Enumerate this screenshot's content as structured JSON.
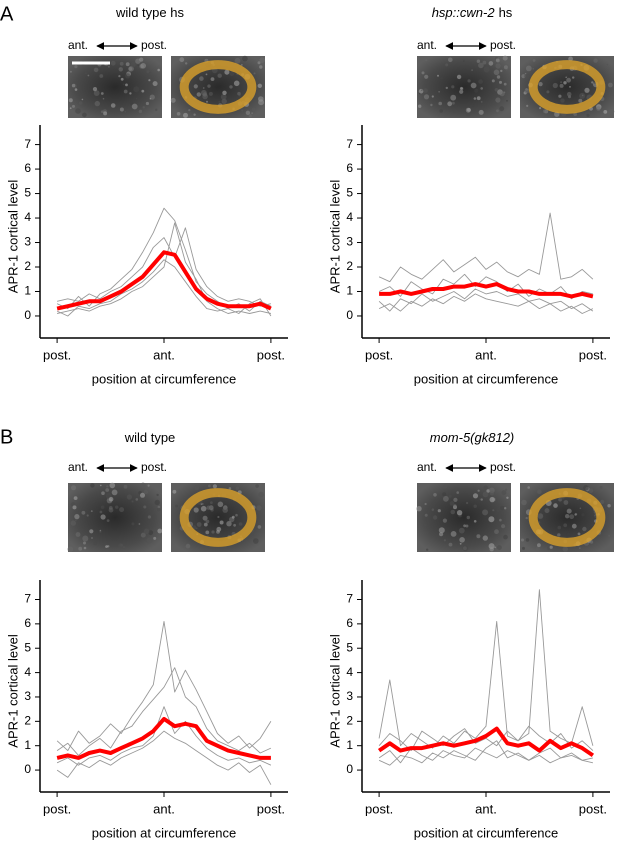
{
  "panel_labels": [
    "A",
    "B"
  ],
  "chart_data": [
    {
      "type": "line",
      "title": "wild type hs",
      "title_italic": false,
      "orientation_labels": [
        "ant.",
        "post."
      ],
      "xlabel": "position at circumference",
      "ylabel": "APR-1 cortical level",
      "x": [
        0,
        0.05,
        0.1,
        0.15,
        0.2,
        0.25,
        0.3,
        0.35,
        0.4,
        0.45,
        0.5,
        0.55,
        0.6,
        0.65,
        0.7,
        0.75,
        0.8,
        0.85,
        0.9,
        0.95,
        1
      ],
      "xlim": [
        -0.08,
        1.08
      ],
      "xticks": [
        {
          "value": 0,
          "label": "post."
        },
        {
          "value": 0.5,
          "label": "ant."
        },
        {
          "value": 1,
          "label": "post."
        }
      ],
      "ylim": [
        -0.9,
        7.8
      ],
      "yticks": [
        0,
        1,
        2,
        3,
        4,
        5,
        6,
        7
      ],
      "series": [
        {
          "color": "#999999",
          "values": [
            0.5,
            0.3,
            0.8,
            0.4,
            0.9,
            1.1,
            1.5,
            1.9,
            2.6,
            3.4,
            4.4,
            3.9,
            2.7,
            1.4,
            0.9,
            0.6,
            0.3,
            0.5,
            0.2,
            0.6,
            0.4
          ]
        },
        {
          "color": "#999999",
          "values": [
            0.1,
            0.2,
            0.3,
            0.2,
            0.4,
            0.5,
            0.7,
            1.0,
            1.2,
            1.6,
            2.0,
            3.8,
            2.2,
            1.5,
            0.6,
            0.3,
            0.1,
            0.2,
            0.1,
            0.2,
            0.1
          ]
        },
        {
          "color": "#999999",
          "values": [
            0.6,
            0.7,
            0.6,
            0.9,
            0.7,
            1.0,
            1.2,
            1.6,
            2.0,
            2.8,
            3.2,
            2.4,
            3.6,
            1.9,
            1.2,
            0.8,
            0.6,
            0.7,
            0.6,
            0.4,
            0.5
          ]
        },
        {
          "color": "#999999",
          "values": [
            0.2,
            0.0,
            0.4,
            0.3,
            0.5,
            0.6,
            0.9,
            1.1,
            1.4,
            1.8,
            2.3,
            2.0,
            1.4,
            0.8,
            0.3,
            0.2,
            0.3,
            0.1,
            0.5,
            0.7,
            0.0
          ]
        },
        {
          "color": "#ff0000",
          "values": [
            0.3,
            0.4,
            0.5,
            0.6,
            0.6,
            0.8,
            1.0,
            1.3,
            1.6,
            2.1,
            2.6,
            2.5,
            1.8,
            1.1,
            0.7,
            0.5,
            0.4,
            0.4,
            0.4,
            0.5,
            0.3
          ]
        }
      ]
    },
    {
      "type": "line",
      "title": "hsp::cwn-2",
      "title_suffix": "hs",
      "title_italic": true,
      "orientation_labels": [
        "ant.",
        "post."
      ],
      "xlabel": "position at circumference",
      "ylabel": "APR-1 cortical level",
      "x": [
        0,
        0.05,
        0.1,
        0.15,
        0.2,
        0.25,
        0.3,
        0.35,
        0.4,
        0.45,
        0.5,
        0.55,
        0.6,
        0.65,
        0.7,
        0.75,
        0.8,
        0.85,
        0.9,
        0.95,
        1
      ],
      "xlim": [
        -0.08,
        1.08
      ],
      "xticks": [
        {
          "value": 0,
          "label": "post."
        },
        {
          "value": 0.5,
          "label": "ant."
        },
        {
          "value": 1,
          "label": "post."
        }
      ],
      "ylim": [
        -0.9,
        7.8
      ],
      "yticks": [
        0,
        1,
        2,
        3,
        4,
        5,
        6,
        7
      ],
      "series": [
        {
          "color": "#999999",
          "values": [
            1.6,
            1.4,
            2.0,
            1.7,
            1.5,
            1.9,
            2.3,
            1.8,
            2.1,
            2.4,
            1.9,
            2.2,
            1.8,
            1.6,
            1.9,
            1.7,
            4.2,
            1.5,
            1.6,
            1.9,
            1.5
          ]
        },
        {
          "color": "#999999",
          "values": [
            0.3,
            0.5,
            0.2,
            0.6,
            0.4,
            0.7,
            0.5,
            0.8,
            0.6,
            0.9,
            0.7,
            0.6,
            0.5,
            0.4,
            0.6,
            0.3,
            0.5,
            0.2,
            0.4,
            0.1,
            0.3
          ]
        },
        {
          "color": "#999999",
          "values": [
            1.0,
            1.2,
            0.8,
            1.4,
            1.1,
            0.9,
            1.5,
            1.3,
            1.7,
            1.2,
            1.6,
            1.4,
            1.0,
            1.3,
            0.8,
            1.1,
            0.9,
            1.2,
            0.7,
            1.0,
            0.9
          ]
        },
        {
          "color": "#999999",
          "values": [
            0.6,
            0.2,
            0.7,
            0.5,
            0.9,
            0.6,
            0.8,
            1.0,
            0.7,
            1.1,
            0.9,
            1.0,
            0.8,
            0.9,
            0.6,
            0.7,
            0.5,
            0.6,
            0.3,
            0.5,
            0.2
          ]
        },
        {
          "color": "#ff0000",
          "values": [
            0.9,
            0.9,
            1.0,
            0.9,
            1.0,
            1.1,
            1.1,
            1.2,
            1.2,
            1.3,
            1.2,
            1.3,
            1.1,
            1.0,
            1.0,
            0.9,
            0.9,
            0.9,
            0.8,
            0.9,
            0.8
          ]
        }
      ]
    },
    {
      "type": "line",
      "title": "wild type",
      "title_italic": false,
      "orientation_labels": [
        "ant.",
        "post."
      ],
      "xlabel": "position at circumference",
      "ylabel": "APR-1 cortical level",
      "x": [
        0,
        0.05,
        0.1,
        0.15,
        0.2,
        0.25,
        0.3,
        0.35,
        0.4,
        0.45,
        0.5,
        0.55,
        0.6,
        0.65,
        0.7,
        0.75,
        0.8,
        0.85,
        0.9,
        0.95,
        1
      ],
      "xlim": [
        -0.08,
        1.08
      ],
      "xticks": [
        {
          "value": 0,
          "label": "post."
        },
        {
          "value": 0.5,
          "label": "ant."
        },
        {
          "value": 1,
          "label": "post."
        }
      ],
      "ylim": [
        -0.9,
        7.8
      ],
      "yticks": [
        0,
        1,
        2,
        3,
        4,
        5,
        6,
        7
      ],
      "series": [
        {
          "color": "#999999",
          "values": [
            1.2,
            0.8,
            1.6,
            1.1,
            1.4,
            1.9,
            1.5,
            2.2,
            2.8,
            3.5,
            6.1,
            3.2,
            4.1,
            3.3,
            2.4,
            1.5,
            1.1,
            1.4,
            0.9,
            1.3,
            2.0
          ]
        },
        {
          "color": "#999999",
          "values": [
            0.0,
            -0.3,
            0.3,
            0.1,
            0.4,
            0.2,
            0.5,
            0.7,
            0.9,
            1.2,
            1.6,
            1.3,
            1.1,
            0.8,
            0.5,
            0.2,
            0.0,
            0.3,
            -0.1,
            0.2,
            -0.6
          ]
        },
        {
          "color": "#999999",
          "values": [
            0.8,
            1.1,
            0.6,
            1.0,
            1.3,
            0.9,
            1.6,
            1.8,
            2.4,
            2.9,
            3.4,
            4.2,
            3.0,
            2.6,
            1.7,
            1.2,
            1.0,
            0.8,
            1.1,
            0.7,
            0.9
          ]
        },
        {
          "color": "#999999",
          "values": [
            0.3,
            0.5,
            0.2,
            0.5,
            0.6,
            0.4,
            0.7,
            0.9,
            1.0,
            1.4,
            2.6,
            1.5,
            2.0,
            1.4,
            0.9,
            0.6,
            0.4,
            0.5,
            0.3,
            0.4,
            0.2
          ]
        },
        {
          "color": "#ff0000",
          "values": [
            0.5,
            0.6,
            0.5,
            0.7,
            0.8,
            0.7,
            0.9,
            1.1,
            1.3,
            1.6,
            2.1,
            1.8,
            1.9,
            1.8,
            1.2,
            1.0,
            0.8,
            0.7,
            0.6,
            0.5,
            0.5
          ]
        }
      ]
    },
    {
      "type": "line",
      "title": "mom-5(gk812)",
      "title_italic": true,
      "orientation_labels": [
        "ant.",
        "post."
      ],
      "xlabel": "position at circumference",
      "ylabel": "APR-1 cortical level",
      "x": [
        0,
        0.05,
        0.1,
        0.15,
        0.2,
        0.25,
        0.3,
        0.35,
        0.4,
        0.45,
        0.5,
        0.55,
        0.6,
        0.65,
        0.7,
        0.75,
        0.8,
        0.85,
        0.9,
        0.95,
        1
      ],
      "xlim": [
        -0.08,
        1.08
      ],
      "xticks": [
        {
          "value": 0,
          "label": "post."
        },
        {
          "value": 0.5,
          "label": "ant."
        },
        {
          "value": 1,
          "label": "post."
        }
      ],
      "ylim": [
        -0.9,
        7.8
      ],
      "yticks": [
        0,
        1,
        2,
        3,
        4,
        5,
        6,
        7
      ],
      "series": [
        {
          "color": "#999999",
          "values": [
            1.3,
            3.7,
            1.0,
            1.5,
            1.2,
            0.9,
            1.4,
            1.1,
            1.6,
            1.3,
            1.8,
            6.1,
            1.4,
            1.2,
            1.5,
            7.4,
            1.6,
            1.3,
            1.1,
            2.6,
            1.0
          ]
        },
        {
          "color": "#999999",
          "values": [
            0.4,
            0.2,
            0.6,
            0.5,
            0.3,
            0.7,
            0.5,
            0.8,
            0.6,
            0.4,
            0.9,
            1.2,
            0.5,
            0.7,
            0.4,
            0.6,
            0.3,
            0.5,
            0.7,
            0.4,
            0.3
          ]
        },
        {
          "color": "#999999",
          "values": [
            1.0,
            1.5,
            1.2,
            0.8,
            1.6,
            1.3,
            1.0,
            1.4,
            1.7,
            1.1,
            1.3,
            1.0,
            1.6,
            1.2,
            1.8,
            1.4,
            1.1,
            1.5,
            0.9,
            1.2,
            0.8
          ]
        },
        {
          "color": "#999999",
          "values": [
            0.5,
            0.8,
            0.3,
            0.9,
            0.6,
            0.4,
            0.8,
            0.6,
            0.5,
            0.9,
            0.7,
            0.5,
            0.8,
            0.6,
            0.4,
            0.7,
            0.9,
            0.5,
            0.6,
            0.4,
            0.5
          ]
        },
        {
          "color": "#ff0000",
          "values": [
            0.8,
            1.1,
            0.8,
            0.9,
            0.9,
            1.0,
            1.1,
            1.0,
            1.1,
            1.2,
            1.4,
            1.7,
            1.1,
            1.0,
            1.1,
            0.8,
            1.2,
            0.9,
            1.1,
            0.9,
            0.6
          ]
        }
      ]
    }
  ]
}
